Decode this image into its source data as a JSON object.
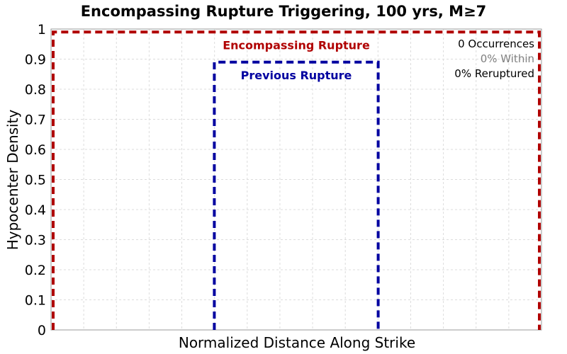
{
  "chart_data": {
    "type": "line",
    "title": "Encompassing Rupture Triggering, 100 yrs, M≥7",
    "xlabel": "Normalized Distance Along Strike",
    "ylabel": "Hypocenter Density",
    "xlim": [
      0,
      1
    ],
    "ylim": [
      0,
      1
    ],
    "yticks": [
      "0",
      "0.1",
      "0.2",
      "0.3",
      "0.4",
      "0.5",
      "0.6",
      "0.7",
      "0.8",
      "0.9",
      "1"
    ],
    "grid": true,
    "series": [
      {
        "name": "Encompassing Rupture",
        "color": "#b00000",
        "x": [
          0,
          0,
          1,
          1
        ],
        "y": [
          0,
          0.99,
          0.99,
          0
        ]
      },
      {
        "name": "Previous Rupture",
        "color": "#0000a0",
        "x": [
          0.333,
          0.333,
          0.667,
          0.667
        ],
        "y": [
          0,
          0.89,
          0.89,
          0
        ]
      }
    ],
    "annotations": [
      {
        "text": "0 Occurrences",
        "color": "#000000"
      },
      {
        "text": "0% Within",
        "color": "#808080"
      },
      {
        "text": "0% Reruptured",
        "color": "#000000"
      }
    ]
  }
}
